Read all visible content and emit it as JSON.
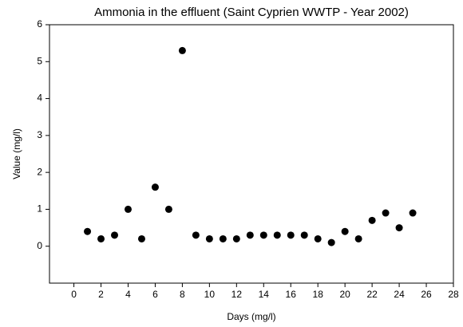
{
  "chart_data": {
    "type": "scatter",
    "title": "Ammonia in the effluent (Saint Cyprien WWTP - Year 2002)",
    "x_label": "Days (mg/l)",
    "y_label": "Value (mg/l)",
    "x": [
      1,
      2,
      3,
      4,
      5,
      6,
      7,
      8,
      9,
      10,
      11,
      12,
      13,
      14,
      15,
      16,
      17,
      18,
      19,
      20,
      21,
      22,
      23,
      24,
      25
    ],
    "values": [
      0.4,
      0.2,
      0.3,
      1.0,
      0.2,
      1.6,
      1.0,
      5.3,
      0.3,
      0.2,
      0.2,
      0.2,
      0.3,
      0.3,
      0.3,
      0.3,
      0.3,
      0.2,
      0.1,
      0.4,
      0.2,
      0.7,
      0.9,
      0.5,
      0.9
    ],
    "color": "#000000",
    "xlim": [
      -1.8,
      28
    ],
    "xticks": [
      0,
      2,
      4,
      6,
      8,
      10,
      12,
      14,
      16,
      18,
      20,
      22,
      24,
      26,
      28
    ],
    "ylim": [
      -1,
      6
    ],
    "yticks": [
      0,
      1,
      2,
      3,
      4,
      5,
      6
    ]
  }
}
